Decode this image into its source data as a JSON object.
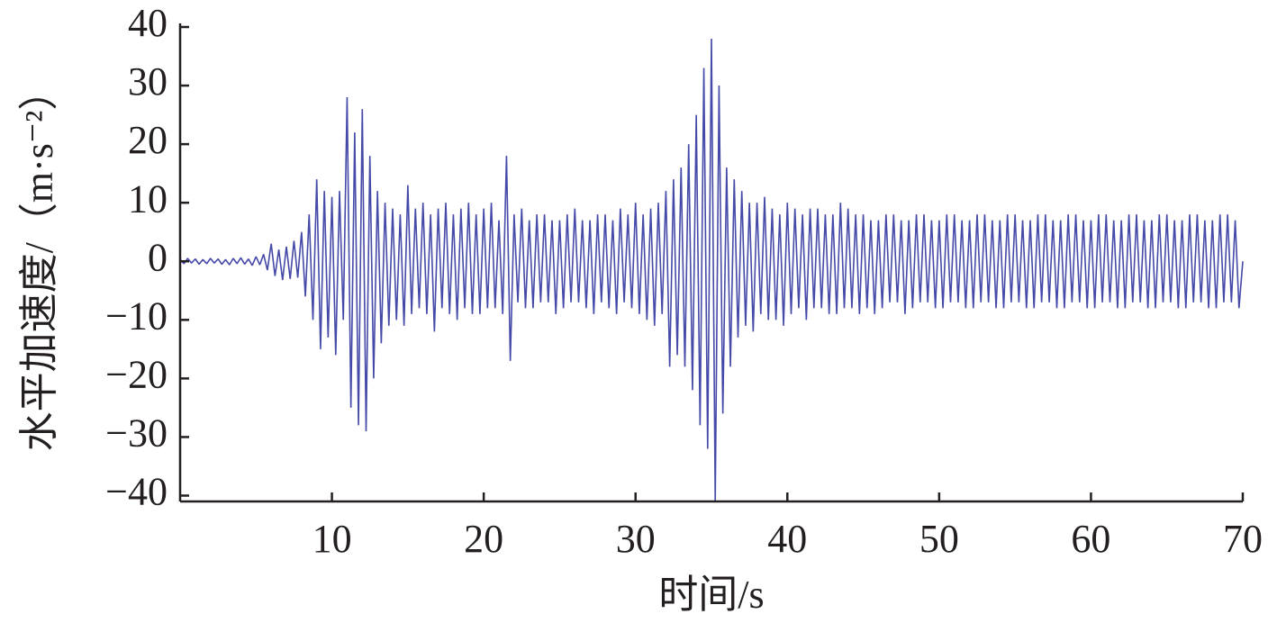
{
  "chart_data": {
    "type": "line",
    "x_label": "时间/s",
    "y_label": "水平加速度/（m·s⁻²）",
    "color": "#4549a8",
    "xlim": [
      0,
      70
    ],
    "ylim": [
      -41,
      40
    ],
    "xticks": [
      10,
      20,
      30,
      40,
      50,
      60,
      70
    ],
    "yticks": [
      {
        "value": -40,
        "label": "−40"
      },
      {
        "value": -30,
        "label": "−30"
      },
      {
        "value": -20,
        "label": "−20"
      },
      {
        "value": -10,
        "label": "−10"
      },
      0,
      10,
      20,
      30,
      40
    ],
    "x": [
      0,
      0.25,
      0.5,
      0.75,
      1,
      1.25,
      1.5,
      1.75,
      2,
      2.25,
      2.5,
      2.75,
      3,
      3.25,
      3.5,
      3.75,
      4,
      4.25,
      4.5,
      4.75,
      5,
      5.25,
      5.5,
      5.75,
      6,
      6.25,
      6.5,
      6.75,
      7,
      7.25,
      7.5,
      7.75,
      8,
      8.25,
      8.5,
      8.75,
      9,
      9.25,
      9.5,
      9.75,
      10,
      10.25,
      10.5,
      10.75,
      11,
      11.25,
      11.5,
      11.75,
      12,
      12.25,
      12.5,
      12.75,
      13,
      13.25,
      13.5,
      13.75,
      14,
      14.25,
      14.5,
      14.75,
      15,
      15.25,
      15.5,
      15.75,
      16,
      16.25,
      16.5,
      16.75,
      17,
      17.25,
      17.5,
      17.75,
      18,
      18.25,
      18.5,
      18.75,
      19,
      19.25,
      19.5,
      19.75,
      20,
      20.25,
      20.5,
      20.75,
      21,
      21.25,
      21.5,
      21.75,
      22,
      22.25,
      22.5,
      22.75,
      23,
      23.25,
      23.5,
      23.75,
      24,
      24.25,
      24.5,
      24.75,
      25,
      25.25,
      25.5,
      25.75,
      26,
      26.25,
      26.5,
      26.75,
      27,
      27.25,
      27.5,
      27.75,
      28,
      28.25,
      28.5,
      28.75,
      29,
      29.25,
      29.5,
      29.75,
      30,
      30.25,
      30.5,
      30.75,
      31,
      31.25,
      31.5,
      31.75,
      32,
      32.25,
      32.5,
      32.75,
      33,
      33.25,
      33.5,
      33.75,
      34,
      34.25,
      34.5,
      34.75,
      35,
      35.25,
      35.5,
      35.75,
      36,
      36.25,
      36.5,
      36.75,
      37,
      37.25,
      37.5,
      37.75,
      38,
      38.25,
      38.5,
      38.75,
      39,
      39.25,
      39.5,
      39.75,
      40,
      40.25,
      40.5,
      40.75,
      41,
      41.25,
      41.5,
      41.75,
      42,
      42.25,
      42.5,
      42.75,
      43,
      43.25,
      43.5,
      43.75,
      44,
      44.25,
      44.5,
      44.75,
      45,
      45.25,
      45.5,
      45.75,
      46,
      46.25,
      46.5,
      46.75,
      47,
      47.25,
      47.5,
      47.75,
      48,
      48.25,
      48.5,
      48.75,
      49,
      49.25,
      49.5,
      49.75,
      50,
      50.25,
      50.5,
      50.75,
      51,
      51.25,
      51.5,
      51.75,
      52,
      52.25,
      52.5,
      52.75,
      53,
      53.25,
      53.5,
      53.75,
      54,
      54.25,
      54.5,
      54.75,
      55,
      55.25,
      55.5,
      55.75,
      56,
      56.25,
      56.5,
      56.75,
      57,
      57.25,
      57.5,
      57.75,
      58,
      58.25,
      58.5,
      58.75,
      59,
      59.25,
      59.5,
      59.75,
      60,
      60.25,
      60.5,
      60.75,
      61,
      61.25,
      61.5,
      61.75,
      62,
      62.25,
      62.5,
      62.75,
      63,
      63.25,
      63.5,
      63.75,
      64,
      64.25,
      64.5,
      64.75,
      65,
      65.25,
      65.5,
      65.75,
      66,
      66.25,
      66.5,
      66.75,
      67,
      67.25,
      67.5,
      67.75,
      68,
      68.25,
      68.5,
      68.75,
      69,
      69.25,
      69.5,
      69.75,
      70
    ],
    "values": [
      0.3,
      -0.4,
      0.5,
      -0.3,
      0.4,
      -0.5,
      0.3,
      -0.4,
      0.5,
      -0.3,
      0.4,
      -0.5,
      0.3,
      -0.6,
      0.5,
      -0.4,
      0.6,
      -0.5,
      0.4,
      -0.7,
      0.8,
      -0.6,
      1.2,
      -1.5,
      3,
      -2.5,
      2,
      -3.2,
      2.5,
      -3,
      3.5,
      -2.8,
      5,
      -6,
      8,
      -10,
      14,
      -15,
      12,
      -13,
      11,
      -16,
      12,
      -10,
      28,
      -25,
      22,
      -28,
      26,
      -29,
      18,
      -20,
      12,
      -14,
      10,
      -11,
      9,
      -10,
      8,
      -11,
      13,
      -9,
      9,
      -8,
      10,
      -9,
      8,
      -12,
      9,
      -8,
      10,
      -9,
      8,
      -10,
      9,
      -8,
      10,
      -9,
      8,
      -9,
      9,
      -8,
      10,
      -8,
      7,
      -9,
      18,
      -17,
      8,
      -7,
      9,
      -8,
      7,
      -8,
      8,
      -7,
      8,
      -7,
      7,
      -9,
      7,
      -8,
      8,
      -7,
      9,
      -7,
      7,
      -8,
      7,
      -9,
      8,
      -7,
      8,
      -8,
      7,
      -9,
      9,
      -7,
      8,
      -8,
      10,
      -9,
      8,
      -10,
      9,
      -11,
      10,
      -9,
      12,
      -18,
      14,
      -16,
      16,
      -18,
      20,
      -22,
      25,
      -28,
      33,
      -32,
      38,
      -41,
      30,
      -26,
      16,
      -18,
      14,
      -13,
      12,
      -11,
      10,
      -12,
      10,
      -9,
      11,
      -10,
      9,
      -10,
      8,
      -11,
      10,
      -9,
      9,
      -8,
      8,
      -10,
      9,
      -8,
      9,
      -8,
      8,
      -9,
      8,
      -9,
      10,
      -8,
      9,
      -8,
      8,
      -9,
      8,
      -8,
      7,
      -9,
      7,
      -8,
      8,
      -7,
      8,
      -7,
      7,
      -9,
      7,
      -8,
      8,
      -7,
      8,
      -7,
      7,
      -8,
      7,
      -8,
      8,
      -7,
      8,
      -7,
      7,
      -8,
      7,
      -8,
      8,
      -7,
      8,
      -7,
      7,
      -8,
      7,
      -8,
      8,
      -7,
      8,
      -7,
      7,
      -8,
      7,
      -8,
      8,
      -7,
      8,
      -7,
      7,
      -8,
      7,
      -8,
      8,
      -7,
      8,
      -7,
      7,
      -8,
      7,
      -8,
      8,
      -7,
      8,
      -7,
      7,
      -8,
      7,
      -8,
      8,
      -7,
      8,
      -7,
      7,
      -8,
      7,
      -8,
      8,
      -7,
      8,
      -7,
      7,
      -8,
      7,
      -8,
      8,
      -7,
      8,
      -7,
      7,
      -8,
      7,
      -8,
      8,
      -7,
      8,
      -7,
      7,
      -8,
      0
    ]
  }
}
